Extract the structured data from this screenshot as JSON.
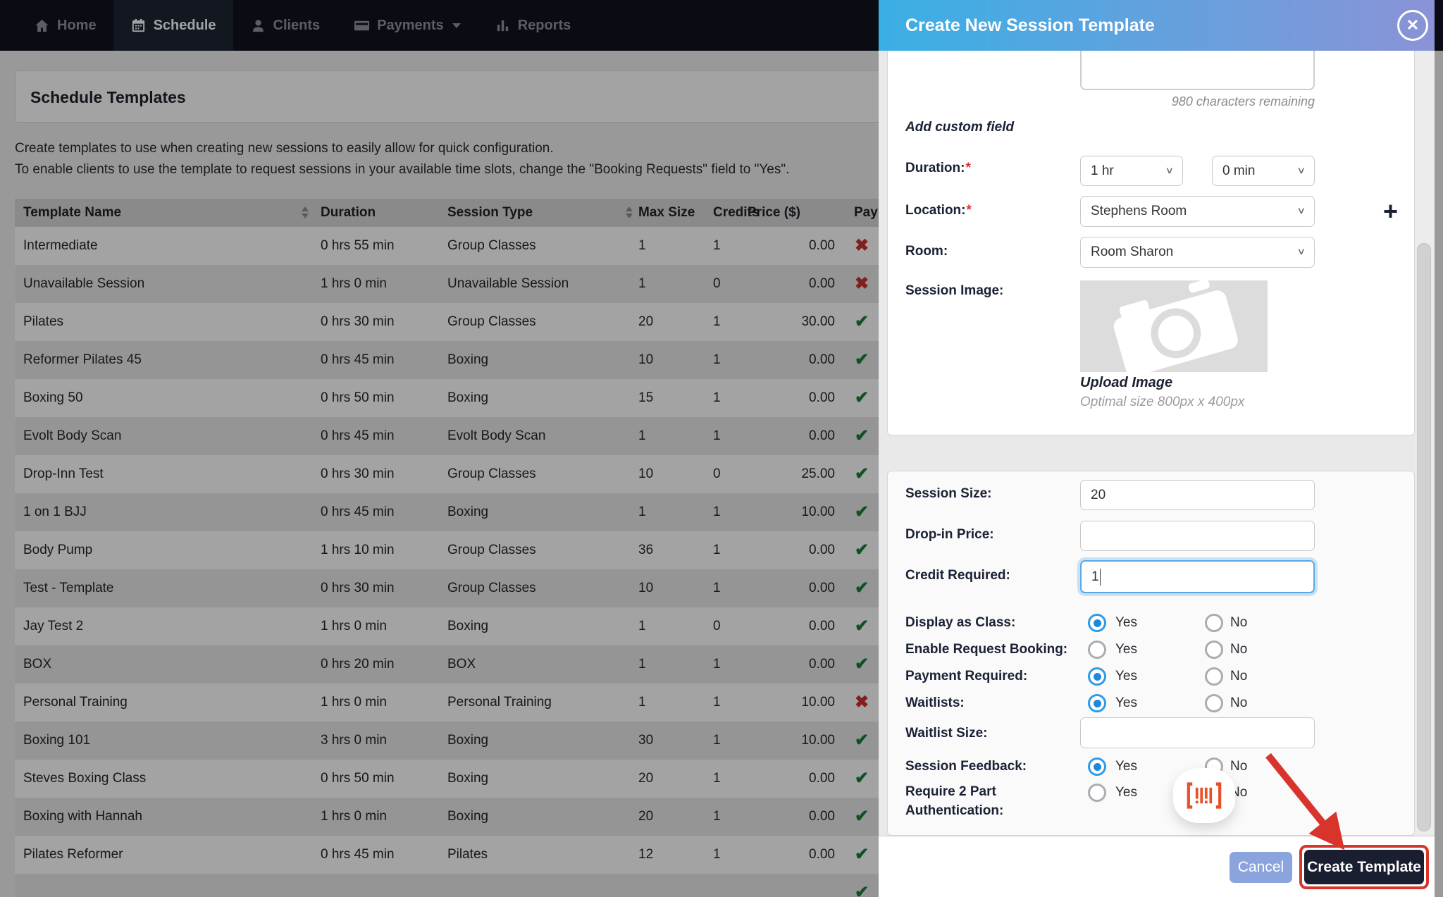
{
  "nav": {
    "items": [
      {
        "label": "Home",
        "icon": "home-icon",
        "active": false,
        "caret": false
      },
      {
        "label": "Schedule",
        "icon": "calendar-icon",
        "active": true,
        "caret": false
      },
      {
        "label": "Clients",
        "icon": "person-icon",
        "active": false,
        "caret": false
      },
      {
        "label": "Payments",
        "icon": "credit-card-icon",
        "active": false,
        "caret": true
      },
      {
        "label": "Reports",
        "icon": "bar-chart-icon",
        "active": false,
        "caret": false
      }
    ]
  },
  "page": {
    "title": "Schedule Templates",
    "intro_line1": "Create templates to use when creating new sessions to easily allow for quick configuration.",
    "intro_line2": "To enable clients to use the template to request sessions in your available time slots, change the \"Booking Requests\" field to \"Yes\".",
    "table": {
      "columns": [
        "Template Name",
        "Duration",
        "Session Type",
        "Max Size",
        "Credits",
        "Price ($)",
        "Pay"
      ],
      "sortable": [
        "Template Name",
        "Session Type"
      ],
      "rows": [
        {
          "name": "Intermediate",
          "duration": "0 hrs 55 min",
          "type": "Group Classes",
          "max": "1",
          "credits": "1",
          "price": "0.00",
          "pay": "no"
        },
        {
          "name": "Unavailable Session",
          "duration": "1 hrs 0 min",
          "type": "Unavailable Session",
          "max": "1",
          "credits": "0",
          "price": "0.00",
          "pay": "no"
        },
        {
          "name": "Pilates",
          "duration": "0 hrs 30 min",
          "type": "Group Classes",
          "max": "20",
          "credits": "1",
          "price": "30.00",
          "pay": "yes"
        },
        {
          "name": "Reformer Pilates 45",
          "duration": "0 hrs 45 min",
          "type": "Boxing",
          "max": "10",
          "credits": "1",
          "price": "0.00",
          "pay": "yes"
        },
        {
          "name": "Boxing 50",
          "duration": "0 hrs 50 min",
          "type": "Boxing",
          "max": "15",
          "credits": "1",
          "price": "0.00",
          "pay": "yes"
        },
        {
          "name": "Evolt Body Scan",
          "duration": "0 hrs 45 min",
          "type": "Evolt Body Scan",
          "max": "1",
          "credits": "1",
          "price": "0.00",
          "pay": "yes"
        },
        {
          "name": "Drop-Inn Test",
          "duration": "0 hrs 30 min",
          "type": "Group Classes",
          "max": "10",
          "credits": "0",
          "price": "25.00",
          "pay": "yes"
        },
        {
          "name": "1 on 1 BJJ",
          "duration": "0 hrs 45 min",
          "type": "Boxing",
          "max": "1",
          "credits": "1",
          "price": "10.00",
          "pay": "yes"
        },
        {
          "name": "Body Pump",
          "duration": "1 hrs 10 min",
          "type": "Group Classes",
          "max": "36",
          "credits": "1",
          "price": "0.00",
          "pay": "yes"
        },
        {
          "name": "Test - Template",
          "duration": "0 hrs 30 min",
          "type": "Group Classes",
          "max": "10",
          "credits": "1",
          "price": "0.00",
          "pay": "yes"
        },
        {
          "name": "Jay Test 2",
          "duration": "1 hrs 0 min",
          "type": "Boxing",
          "max": "1",
          "credits": "0",
          "price": "0.00",
          "pay": "yes"
        },
        {
          "name": "BOX",
          "duration": "0 hrs 20 min",
          "type": "BOX",
          "max": "1",
          "credits": "1",
          "price": "0.00",
          "pay": "yes"
        },
        {
          "name": "Personal Training",
          "duration": "1 hrs 0 min",
          "type": "Personal Training",
          "max": "1",
          "credits": "1",
          "price": "10.00",
          "pay": "no"
        },
        {
          "name": "Boxing 101",
          "duration": "3 hrs 0 min",
          "type": "Boxing",
          "max": "30",
          "credits": "1",
          "price": "10.00",
          "pay": "yes"
        },
        {
          "name": "Steves Boxing Class",
          "duration": "0 hrs 50 min",
          "type": "Boxing",
          "max": "20",
          "credits": "1",
          "price": "0.00",
          "pay": "yes"
        },
        {
          "name": "Boxing with Hannah",
          "duration": "1 hrs 0 min",
          "type": "Boxing",
          "max": "20",
          "credits": "1",
          "price": "0.00",
          "pay": "yes"
        },
        {
          "name": "Pilates Reformer",
          "duration": "0 hrs 45 min",
          "type": "Pilates",
          "max": "12",
          "credits": "1",
          "price": "0.00",
          "pay": "yes"
        },
        {
          "name": "",
          "duration": "",
          "type": "",
          "max": "",
          "credits": "",
          "price": "",
          "pay": "yes"
        }
      ]
    }
  },
  "modal": {
    "title": "Create New Session Template",
    "close_icon": "✕",
    "chars_remaining": "980 characters remaining",
    "add_custom_field": "Add custom field",
    "duration": {
      "label": "Duration:",
      "hour_value": "1 hr",
      "minute_value": "0 min"
    },
    "location": {
      "label": "Location:",
      "value": "Stephens Room"
    },
    "room": {
      "label": "Room:",
      "value": "Room Sharon"
    },
    "session_image": {
      "label": "Session Image:",
      "upload_label": "Upload Image",
      "hint": "Optimal size 800px x 400px"
    },
    "session_size": {
      "label": "Session Size:",
      "value": "20"
    },
    "dropin_price": {
      "label": "Drop-in Price:",
      "value": ""
    },
    "credit_required": {
      "label": "Credit Required:",
      "value": "1"
    },
    "waitlist_size": {
      "label": "Waitlist Size:",
      "value": ""
    },
    "yes_label": "Yes",
    "no_label": "No",
    "radio_rows": [
      {
        "label": "Display as Class:",
        "yes": true,
        "no": false
      },
      {
        "label": "Enable Request Booking:",
        "yes": false,
        "no": false
      },
      {
        "label": "Payment Required:",
        "yes": true,
        "no": false
      },
      {
        "label": "Waitlists:",
        "yes": true,
        "no": false
      },
      {
        "label": "Session Feedback:",
        "yes": true,
        "no": false
      },
      {
        "label": "Require 2 Part Authentication:",
        "yes": false,
        "no": false,
        "badge": "barcode-scan-icon"
      }
    ],
    "footer": {
      "cancel": "Cancel",
      "create": "Create Template"
    }
  },
  "colors": {
    "nav_bg": "#12141e",
    "header_gradient_left": "#3aafe5",
    "header_gradient_right": "#8a93d6",
    "radio_selected": "#2e9be6",
    "check_green": "#1e7e34",
    "cross_red": "#ce312f",
    "annotation_red": "#d8342c",
    "cancel_button": "#8ca4de",
    "create_button": "#191e31",
    "barcode_icon": "#e8502a"
  }
}
